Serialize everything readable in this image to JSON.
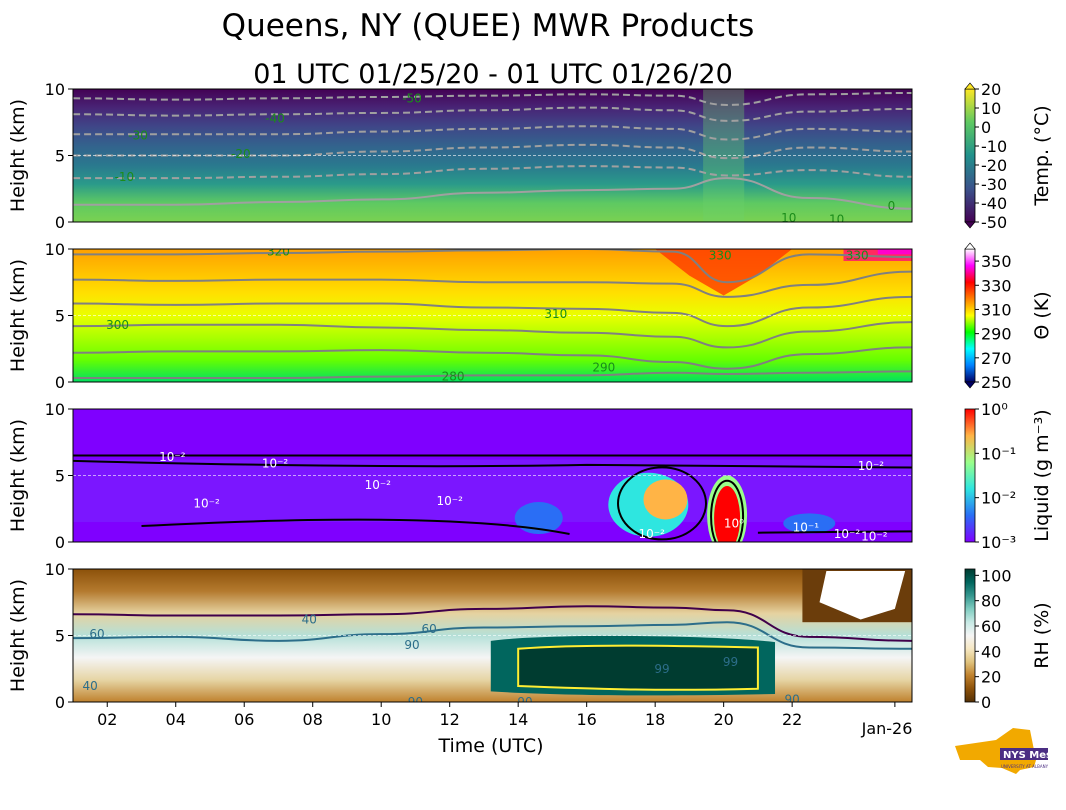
{
  "header": {
    "title": "Queens, NY (QUEE) MWR Products",
    "subtitle": "01 UTC 01/25/20 - 01 UTC 01/26/20"
  },
  "xaxis": {
    "label": "Time (UTC)",
    "range": [
      1,
      25.5
    ],
    "ticks": [
      2,
      4,
      6,
      8,
      10,
      12,
      14,
      16,
      18,
      20,
      22
    ],
    "tick_labels": [
      "02",
      "04",
      "06",
      "08",
      "10",
      "12",
      "14",
      "16",
      "18",
      "20",
      "22"
    ],
    "end_label": "Jan-26"
  },
  "logo": {
    "text": "NYS Mesonet",
    "subtext": "UNIVERSITY AT ALBANY"
  },
  "chart_data": [
    {
      "type": "heatmap",
      "name": "temperature",
      "ylabel": "Height (km)",
      "yticks": [
        0,
        5,
        10
      ],
      "ylim": [
        0,
        10
      ],
      "colorbar_label": "Temp. (°C)",
      "colorbar_ticks": [
        "20",
        "10",
        "0",
        "-10",
        "-20",
        "-30",
        "-40",
        "-50"
      ],
      "colorbar_range": [
        -50,
        20
      ],
      "colormap": [
        "#440154",
        "#3b528b",
        "#21918c",
        "#5ec962",
        "#fde725"
      ],
      "contour_lines": [
        {
          "level": -50,
          "heights": [
            9.3,
            9.2,
            9.3,
            9.4,
            9.5,
            9.6,
            9.5,
            8.8,
            9.6,
            9.7
          ],
          "color": "#a0a0a0",
          "dashed": true
        },
        {
          "level": -40,
          "heights": [
            8.1,
            8.0,
            8.1,
            8.2,
            8.4,
            8.6,
            8.4,
            7.6,
            8.3,
            8.5
          ],
          "color": "#a0a0a0",
          "dashed": true
        },
        {
          "level": -30,
          "heights": [
            6.6,
            6.6,
            6.6,
            6.8,
            7.0,
            7.2,
            7.0,
            6.2,
            7.0,
            6.8
          ],
          "color": "#a0a0a0",
          "dashed": true
        },
        {
          "level": -20,
          "heights": [
            5.0,
            5.0,
            5.0,
            5.3,
            5.6,
            5.8,
            5.6,
            4.8,
            5.6,
            5.3
          ],
          "color": "#a0a0a0",
          "dashed": true
        },
        {
          "level": -10,
          "heights": [
            3.3,
            3.3,
            3.4,
            3.6,
            4.0,
            4.2,
            4.1,
            3.5,
            3.9,
            3.4
          ],
          "color": "#a0a0a0",
          "dashed": true
        },
        {
          "level": 0,
          "heights": [
            1.3,
            1.3,
            1.5,
            1.7,
            2.2,
            2.4,
            2.5,
            3.3,
            1.8,
            1.0
          ],
          "color": "#a0a0a0",
          "dashed": false
        }
      ],
      "contour_labels": [
        {
          "text": "-50",
          "t": 10.9,
          "h": 9.3
        },
        {
          "text": "-40",
          "t": 6.9,
          "h": 7.8
        },
        {
          "text": "-30",
          "t": 2.9,
          "h": 6.5
        },
        {
          "text": "-20",
          "t": 5.9,
          "h": 5.1
        },
        {
          "text": "-10",
          "t": 2.5,
          "h": 3.4
        },
        {
          "text": "10",
          "t": 21.9,
          "h": 0.3
        },
        {
          "text": "10",
          "t": 23.3,
          "h": 0.2
        },
        {
          "text": "0",
          "t": 24.9,
          "h": 1.2
        }
      ]
    },
    {
      "type": "heatmap",
      "name": "potential-temperature",
      "ylabel": "Height (km)",
      "yticks": [
        0,
        5,
        10
      ],
      "ylim": [
        0,
        10
      ],
      "colorbar_label": "Θ (K)",
      "colorbar_ticks": [
        "350",
        "330",
        "310",
        "290",
        "270",
        "250"
      ],
      "colorbar_range": [
        250,
        360
      ],
      "colormap": [
        "#000066",
        "#0080ff",
        "#00ffff",
        "#00ff00",
        "#ffff00",
        "#ff8000",
        "#ff0000",
        "#ff00ff",
        "#ffffff"
      ],
      "contour_lines": [
        {
          "level": 330,
          "heights": [
            9.6,
            9.6,
            9.7,
            9.8,
            9.9,
            10.0,
            9.8,
            7.5,
            9.6,
            9.4
          ],
          "color": "#808080",
          "dashed": false
        },
        {
          "level": 320,
          "heights": [
            7.7,
            7.6,
            7.7,
            7.7,
            7.5,
            7.5,
            7.4,
            6.4,
            7.3,
            8.3
          ],
          "color": "#808080",
          "dashed": false
        },
        {
          "level": 310,
          "heights": [
            5.9,
            5.8,
            5.9,
            5.9,
            5.6,
            5.5,
            5.2,
            4.2,
            5.6,
            6.4
          ],
          "color": "#808080",
          "dashed": false
        },
        {
          "level": 300,
          "heights": [
            4.2,
            4.3,
            4.3,
            4.1,
            3.9,
            3.7,
            3.4,
            2.6,
            3.8,
            4.5
          ],
          "color": "#808080",
          "dashed": false
        },
        {
          "level": 295,
          "heights": [
            2.2,
            2.3,
            2.3,
            2.4,
            2.2,
            2.0,
            1.5,
            1.0,
            2.1,
            2.6
          ],
          "color": "#808080",
          "dashed": false
        },
        {
          "level": 280,
          "heights": [
            0.3,
            0.3,
            0.3,
            0.4,
            0.5,
            0.5,
            0.7,
            0.6,
            0.7,
            0.8
          ],
          "color": "#808080",
          "dashed": false
        }
      ],
      "contour_labels": [
        {
          "text": "320",
          "t": 7.0,
          "h": 9.8
        },
        {
          "text": "330",
          "t": 19.9,
          "h": 9.5
        },
        {
          "text": "330",
          "t": 23.9,
          "h": 9.5
        },
        {
          "text": "310",
          "t": 15.1,
          "h": 5.1
        },
        {
          "text": "300",
          "t": 2.3,
          "h": 4.3
        },
        {
          "text": "290",
          "t": 16.5,
          "h": 1.1
        },
        {
          "text": "280",
          "t": 12.1,
          "h": 0.4
        }
      ]
    },
    {
      "type": "heatmap",
      "name": "liquid-water",
      "ylabel": "Height (km)",
      "yticks": [
        0,
        5,
        10
      ],
      "ylim": [
        0,
        10
      ],
      "colorbar_label": "Liquid (g m⁻³)",
      "colorbar_ticks": [
        "10⁰",
        "10⁻¹",
        "10⁻²",
        "10⁻³"
      ],
      "colorbar_range": [
        0.001,
        1
      ],
      "log_scale": true,
      "colormap": [
        "#7f00ff",
        "#2a6ef5",
        "#2ee6e0",
        "#9aff8a",
        "#ffb446",
        "#ff0000"
      ],
      "contour_labels": [
        {
          "text": "10⁻²",
          "t": 3.9,
          "h": 6.4
        },
        {
          "text": "10⁻²",
          "t": 6.9,
          "h": 5.9
        },
        {
          "text": "10⁻²",
          "t": 4.9,
          "h": 2.9
        },
        {
          "text": "10⁻²",
          "t": 9.9,
          "h": 4.3
        },
        {
          "text": "10⁻²",
          "t": 12.0,
          "h": 3.1
        },
        {
          "text": "10⁻²",
          "t": 17.9,
          "h": 0.6
        },
        {
          "text": "10⁰",
          "t": 20.3,
          "h": 1.4
        },
        {
          "text": "10⁻¹",
          "t": 22.4,
          "h": 1.1
        },
        {
          "text": "10⁻²",
          "t": 23.6,
          "h": 0.6
        },
        {
          "text": "10⁻²",
          "t": 24.4,
          "h": 0.4
        },
        {
          "text": "10⁻²",
          "t": 24.3,
          "h": 5.7
        }
      ]
    },
    {
      "type": "heatmap",
      "name": "relative-humidity",
      "ylabel": "Height (km)",
      "yticks": [
        0,
        5,
        10
      ],
      "ylim": [
        0,
        10
      ],
      "colorbar_label": "RH (%)",
      "colorbar_ticks": [
        "100",
        "80",
        "60",
        "40",
        "20",
        "0"
      ],
      "colorbar_range": [
        0,
        105
      ],
      "colormap": [
        "#543005",
        "#8c510a",
        "#bf812d",
        "#dfc27d",
        "#f6e8c3",
        "#f5f5f5",
        "#c7eae5",
        "#80cdc1",
        "#35978f",
        "#01665e",
        "#003c30"
      ],
      "contour_lines": [
        {
          "level": 40,
          "heights": [
            6.6,
            6.5,
            6.5,
            6.6,
            7.0,
            7.2,
            7.1,
            6.9,
            4.9,
            4.6
          ],
          "color": "#40004b",
          "dashed": false
        },
        {
          "level": 60,
          "heights": [
            4.8,
            4.9,
            4.6,
            5.1,
            5.6,
            5.7,
            5.8,
            6.0,
            4.1,
            4.0
          ],
          "color": "#2c6e8a",
          "dashed": false
        }
      ],
      "contour_labels": [
        {
          "text": "60",
          "t": 1.7,
          "h": 5.1
        },
        {
          "text": "40",
          "t": 7.9,
          "h": 6.2
        },
        {
          "text": "60",
          "t": 11.4,
          "h": 5.5
        },
        {
          "text": "90",
          "t": 10.9,
          "h": 4.3
        },
        {
          "text": "99",
          "t": 18.2,
          "h": 2.5
        },
        {
          "text": "99",
          "t": 20.2,
          "h": 3.0
        },
        {
          "text": "40",
          "t": 1.5,
          "h": 1.2
        },
        {
          "text": "90",
          "t": 11.0,
          "h": 0.0
        },
        {
          "text": "90",
          "t": 14.2,
          "h": 0.0
        },
        {
          "text": "90",
          "t": 22.0,
          "h": 0.2
        }
      ]
    }
  ]
}
